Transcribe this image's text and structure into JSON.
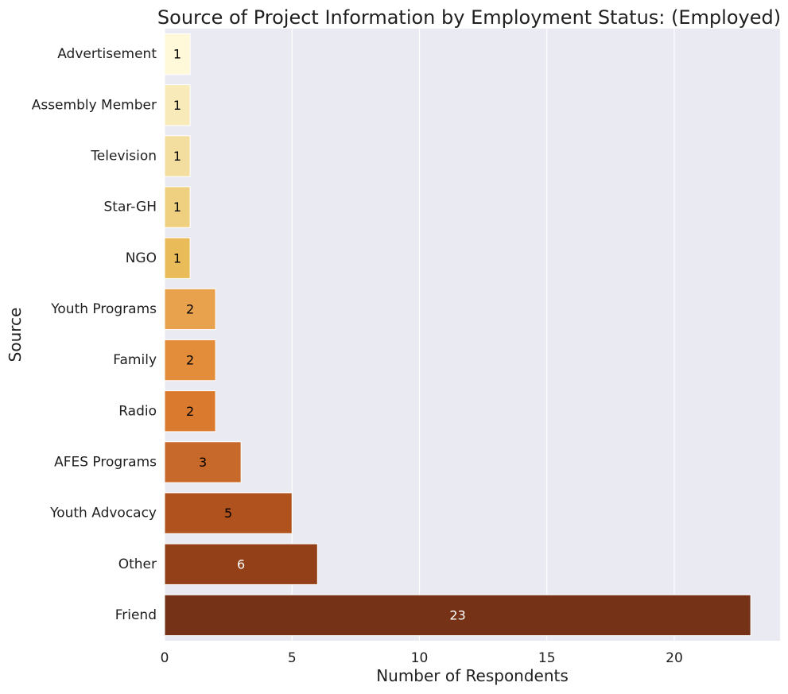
{
  "chart_data": {
    "type": "bar",
    "orientation": "horizontal",
    "title": "Source of Project Information by Employment Status: (Employed)",
    "xlabel": "Number of Respondents",
    "ylabel": "Source",
    "categories": [
      "Advertisement",
      "Assembly Member",
      "Television",
      "Star-GH",
      "NGO",
      "Youth Programs",
      "Family",
      "Radio",
      "AFES Programs",
      "Youth Advocacy",
      "Other",
      "Friend"
    ],
    "values": [
      1,
      1,
      1,
      1,
      1,
      2,
      2,
      2,
      3,
      5,
      6,
      23
    ],
    "data_labels": [
      "1",
      "1",
      "1",
      "1",
      "1",
      "2",
      "2",
      "2",
      "3",
      "5",
      "6",
      "23"
    ],
    "xlim": [
      0,
      24.15
    ],
    "xticks": [
      0,
      5,
      10,
      15,
      20
    ],
    "xtick_labels": [
      "0",
      "5",
      "10",
      "15",
      "20"
    ],
    "grid": true,
    "colors": [
      "#fff8d9",
      "#f8ebb9",
      "#f4de9f",
      "#efd081",
      "#e9bc59",
      "#e8a24e",
      "#e38c3a",
      "#da7a2f",
      "#c7692a",
      "#b0521d",
      "#934019",
      "#753216"
    ],
    "label_colors": [
      "#000000",
      "#000000",
      "#000000",
      "#000000",
      "#000000",
      "#000000",
      "#000000",
      "#000000",
      "#000000",
      "#000000",
      "#ffffff",
      "#ffffff"
    ],
    "plot_background": "#eaeaf2",
    "grid_color": "#ffffff"
  }
}
